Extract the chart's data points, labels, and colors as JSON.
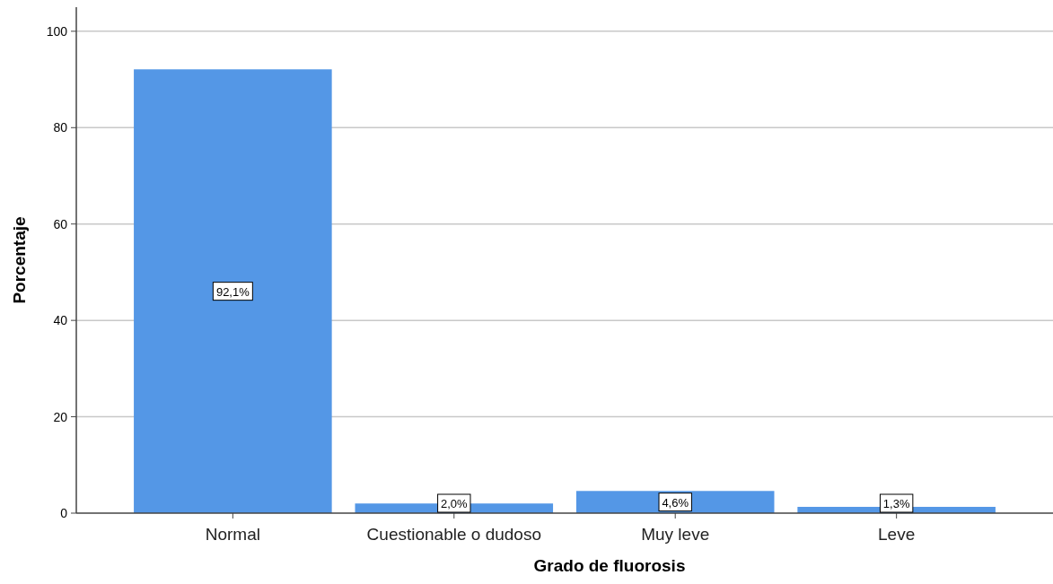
{
  "chart_data": {
    "type": "bar",
    "xlabel": "Grado de fluorosis",
    "ylabel": "Porcentaje",
    "categories": [
      "Normal",
      "Cuestionable o dudoso",
      "Muy leve",
      "Leve"
    ],
    "values": [
      92.1,
      2.0,
      4.6,
      1.3
    ],
    "value_labels": [
      "92,1%",
      "2,0%",
      "4,6%",
      "1,3%"
    ],
    "color": "#5497e6",
    "ylim": [
      0,
      105
    ],
    "yticks": [
      0,
      20,
      40,
      60,
      80,
      100
    ],
    "grid": "y"
  }
}
